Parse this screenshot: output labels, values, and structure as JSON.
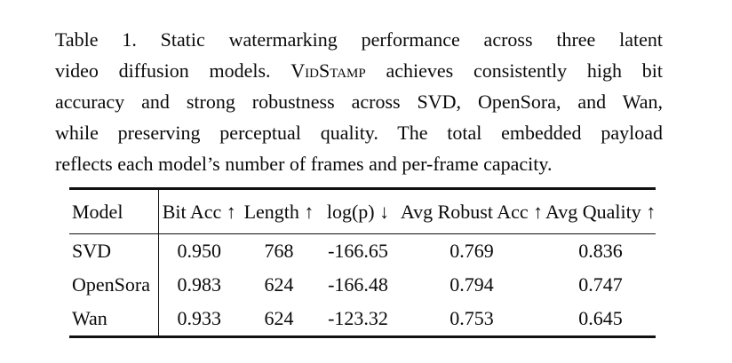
{
  "caption": {
    "line1": "Table 1.  Static watermarking performance across three latent",
    "line2_pre": "video diffusion models. ",
    "brand": "VidStamp",
    "line2_post": " achieves consistently high bit",
    "line3": "accuracy and strong robustness across SVD, OpenSora, and Wan,",
    "line4": "while preserving perceptual quality.  The total embedded payload",
    "line5": "reflects each model’s number of frames and per-frame capacity."
  },
  "table": {
    "headers": {
      "model": "Model",
      "bit_acc": "Bit Acc ↑",
      "length": "Length ↑",
      "log_p": "log(p) ↓",
      "avg_robust_acc": "Avg Robust Acc ↑",
      "avg_quality": "Avg Quality ↑"
    },
    "rows": [
      {
        "model": "SVD",
        "bit_acc": "0.950",
        "length": "768",
        "log_p": "-166.65",
        "avg_robust_acc": "0.769",
        "avg_quality": "0.836"
      },
      {
        "model": "OpenSora",
        "bit_acc": "0.983",
        "length": "624",
        "log_p": "-166.48",
        "avg_robust_acc": "0.794",
        "avg_quality": "0.747"
      },
      {
        "model": "Wan",
        "bit_acc": "0.933",
        "length": "624",
        "log_p": "-123.32",
        "avg_robust_acc": "0.753",
        "avg_quality": "0.645"
      }
    ]
  },
  "colors": {
    "text": "#0a0a0a",
    "rule": "#111111",
    "background": "#ffffff"
  }
}
